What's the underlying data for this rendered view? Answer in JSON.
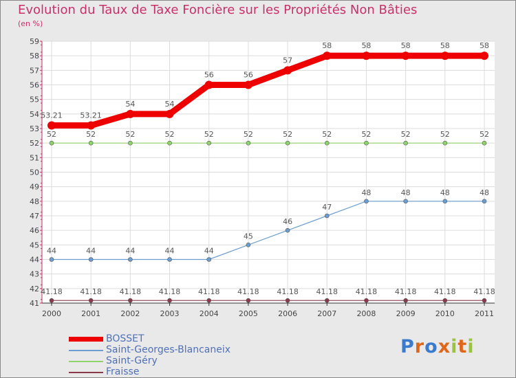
{
  "chart_data": {
    "type": "line",
    "title": "Evolution du Taux de Taxe Foncière sur les Propriétés Non Bâties",
    "subtitle": "(en %)",
    "categories": [
      "2000",
      "2001",
      "2002",
      "2003",
      "2004",
      "2005",
      "2006",
      "2007",
      "2008",
      "2009",
      "2010",
      "2011"
    ],
    "ylim": [
      41,
      59
    ],
    "yticks": [
      41,
      42,
      43,
      44,
      45,
      46,
      47,
      48,
      49,
      50,
      51,
      52,
      53,
      54,
      55,
      56,
      57,
      58,
      59
    ],
    "series": [
      {
        "name": "BOSSET",
        "color": "#ee0000",
        "values": [
          53.21,
          53.21,
          54,
          54,
          56,
          56,
          57,
          58,
          58,
          58,
          58,
          58
        ],
        "labels": [
          "53.21",
          "53.21",
          "54",
          "54",
          "56",
          "56",
          "57",
          "58",
          "58",
          "58",
          "58",
          "58"
        ]
      },
      {
        "name": "Saint-Georges-Blancaneix",
        "color": "#6b9dd0",
        "values": [
          44,
          44,
          44,
          44,
          44,
          45,
          46,
          47,
          48,
          48,
          48,
          48
        ],
        "labels": [
          "44",
          "44",
          "44",
          "44",
          "44",
          "45",
          "46",
          "47",
          "48",
          "48",
          "48",
          "48"
        ]
      },
      {
        "name": "Saint-Géry",
        "color": "#8fd46a",
        "values": [
          52,
          52,
          52,
          52,
          52,
          52,
          52,
          52,
          52,
          52,
          52,
          52
        ],
        "labels": [
          "52",
          "52",
          "52",
          "52",
          "52",
          "52",
          "52",
          "52",
          "52",
          "52",
          "52",
          "52"
        ]
      },
      {
        "name": "Fraisse",
        "color": "#8a3a4a",
        "values": [
          41.18,
          41.18,
          41.18,
          41.18,
          41.18,
          41.18,
          41.18,
          41.18,
          41.18,
          41.18,
          41.18,
          41.18
        ],
        "labels": [
          "41.18",
          "41.18",
          "41.18",
          "41.18",
          "41.18",
          "41.18",
          "41.18",
          "41.18",
          "41.18",
          "41.18",
          "41.18",
          "41.18"
        ]
      }
    ]
  },
  "logo": {
    "letters": [
      "P",
      "r",
      "o",
      "x",
      "i",
      "t",
      "i"
    ],
    "colors": [
      "#3a7ad0",
      "#e0661a",
      "#3a7ad0",
      "#e0661a",
      "#9ac43a",
      "#e0661a",
      "#9ac43a"
    ]
  }
}
